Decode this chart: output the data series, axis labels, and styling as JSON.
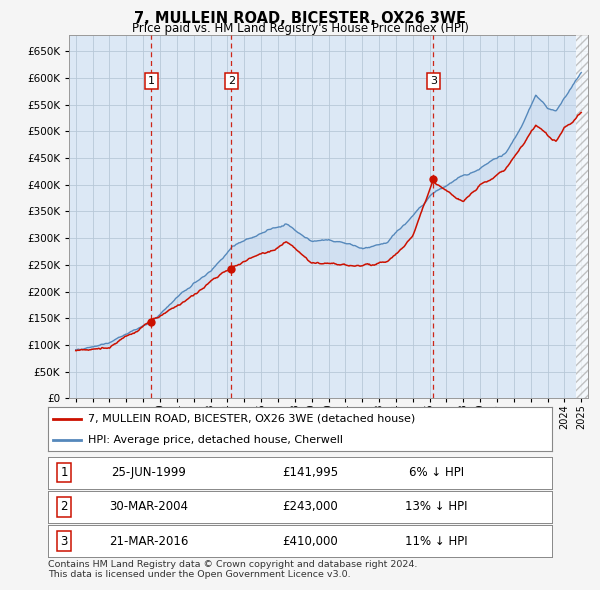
{
  "title": "7, MULLEIN ROAD, BICESTER, OX26 3WE",
  "subtitle": "Price paid vs. HM Land Registry's House Price Index (HPI)",
  "ylim": [
    0,
    680000
  ],
  "yticks": [
    0,
    50000,
    100000,
    150000,
    200000,
    250000,
    300000,
    350000,
    400000,
    450000,
    500000,
    550000,
    600000,
    650000
  ],
  "xlim_start": 1994.6,
  "xlim_end": 2025.4,
  "plot_bg": "#dce8f5",
  "grid_color": "#b8c8d8",
  "hpi_color": "#5588bb",
  "hpi_fill": "#c5d8ee",
  "price_color": "#cc1100",
  "sale_line_color": "#cc1100",
  "sales": [
    {
      "num": 1,
      "year": 1999.48,
      "price": 141995,
      "label": "25-JUN-1999",
      "price_str": "£141,995",
      "pct": "6% ↓ HPI"
    },
    {
      "num": 2,
      "year": 2004.24,
      "price": 243000,
      "label": "30-MAR-2004",
      "price_str": "£243,000",
      "pct": "13% ↓ HPI"
    },
    {
      "num": 3,
      "year": 2016.22,
      "price": 410000,
      "label": "21-MAR-2016",
      "price_str": "£410,000",
      "pct": "11% ↓ HPI"
    }
  ],
  "legend_line1": "7, MULLEIN ROAD, BICESTER, OX26 3WE (detached house)",
  "legend_line2": "HPI: Average price, detached house, Cherwell",
  "footer1": "Contains HM Land Registry data © Crown copyright and database right 2024.",
  "footer2": "This data is licensed under the Open Government Licence v3.0."
}
